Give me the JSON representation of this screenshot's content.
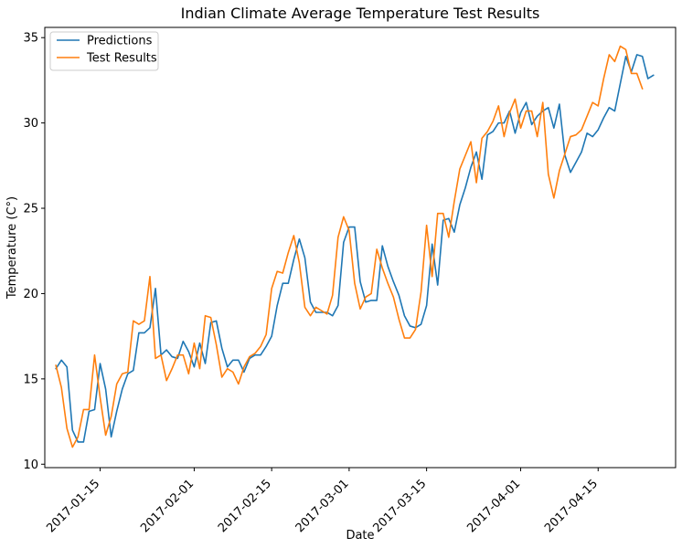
{
  "chart_data": {
    "type": "line",
    "title": "Indian Climate Average Temperature Test Results",
    "xlabel": "Date",
    "ylabel": "Temperature (C°)",
    "x_start": "2017-01-07",
    "xlim": [
      "2017-01-05",
      "2017-04-29"
    ],
    "ylim": [
      9.8,
      35.6
    ],
    "xticks": [
      "2017-01-15",
      "2017-02-01",
      "2017-02-15",
      "2017-03-01",
      "2017-03-15",
      "2017-04-01",
      "2017-04-15"
    ],
    "yticks": [
      10,
      15,
      20,
      25,
      30,
      35
    ],
    "grid": false,
    "legend_position": "top-left",
    "series": [
      {
        "name": "Predictions",
        "color": "#1f77b4",
        "values": [
          15.6,
          16.1,
          15.7,
          12.0,
          11.3,
          11.3,
          13.1,
          13.2,
          15.9,
          14.4,
          11.6,
          13.1,
          14.4,
          15.3,
          15.5,
          17.7,
          17.7,
          18.0,
          20.3,
          16.4,
          16.7,
          16.3,
          16.2,
          17.2,
          16.6,
          15.7,
          17.1,
          15.9,
          18.3,
          18.4,
          16.8,
          15.7,
          16.1,
          16.1,
          15.4,
          16.2,
          16.4,
          16.4,
          16.9,
          17.5,
          19.3,
          20.6,
          20.6,
          22.0,
          23.2,
          22.1,
          19.5,
          18.9,
          18.9,
          18.9,
          18.7,
          19.3,
          23.0,
          23.9,
          23.9,
          20.7,
          19.5,
          19.6,
          19.6,
          22.8,
          21.6,
          20.7,
          19.9,
          18.7,
          18.1,
          18.0,
          18.2,
          19.3,
          22.9,
          20.5,
          24.3,
          24.4,
          23.6,
          25.2,
          26.2,
          27.4,
          28.3,
          26.7,
          29.3,
          29.5,
          30.0,
          30.0,
          30.7,
          29.4,
          30.6,
          31.2,
          29.9,
          30.4,
          30.7,
          30.9,
          29.7,
          31.1,
          28.1,
          27.1,
          27.7,
          28.3,
          29.4,
          29.2,
          29.6,
          30.3,
          30.9,
          30.7,
          32.3,
          33.9,
          33.0,
          34.0,
          33.9,
          32.6,
          32.8
        ]
      },
      {
        "name": "Test Results",
        "color": "#ff7f0e",
        "values": [
          15.8,
          14.5,
          12.1,
          11.0,
          11.6,
          13.2,
          13.2,
          16.4,
          13.9,
          11.7,
          12.8,
          14.7,
          15.3,
          15.4,
          18.4,
          18.2,
          18.4,
          21.0,
          16.2,
          16.4,
          14.9,
          15.6,
          16.4,
          16.4,
          15.3,
          17.1,
          15.6,
          18.7,
          18.6,
          17.0,
          15.1,
          15.6,
          15.4,
          14.7,
          15.7,
          16.3,
          16.5,
          16.9,
          17.6,
          20.3,
          21.3,
          21.2,
          22.4,
          23.4,
          21.8,
          19.2,
          18.7,
          19.2,
          19.0,
          18.8,
          19.9,
          23.3,
          24.5,
          23.7,
          20.6,
          19.1,
          19.8,
          20.0,
          22.6,
          21.5,
          20.6,
          19.8,
          18.5,
          17.4,
          17.4,
          17.9,
          20.1,
          24.0,
          21.0,
          24.7,
          24.7,
          23.3,
          25.4,
          27.3,
          28.1,
          28.9,
          26.5,
          29.1,
          29.5,
          30.1,
          31.0,
          29.2,
          30.6,
          31.4,
          29.7,
          30.7,
          30.7,
          29.2,
          31.2,
          27.0,
          25.6,
          27.2,
          28.2,
          29.2,
          29.3,
          29.6,
          30.4,
          31.2,
          31.0,
          32.6,
          34.0,
          33.6,
          34.5,
          34.3,
          32.9,
          32.9,
          32.0
        ]
      }
    ]
  }
}
